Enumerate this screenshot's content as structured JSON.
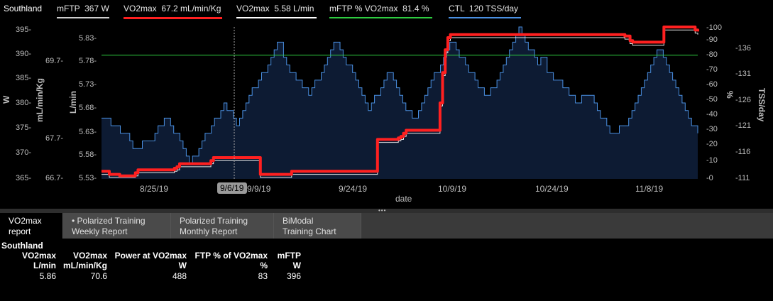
{
  "legend": {
    "items": [
      {
        "key": "southland",
        "label": "Southland",
        "color": "#ffffff"
      },
      {
        "key": "mftp",
        "label": "mFTP  367 W",
        "color": "#cfcfcf"
      },
      {
        "key": "vo2_kg",
        "label": "VO2max  67.2 mL/min/Kg",
        "color": "#ff2020"
      },
      {
        "key": "vo2_l",
        "label": "VO2max  5.58 L/min",
        "color": "#ffffff"
      },
      {
        "key": "pct",
        "label": "mFTP % VO2max  81.4 %",
        "color": "#2ecc40"
      },
      {
        "key": "ctl",
        "label": "CTL  120 TSS/day",
        "color": "#4a90e2"
      }
    ]
  },
  "chart_data": {
    "type": "line",
    "xlabel": "date",
    "x_ticks": [
      "8/25/19",
      "9/6/19",
      "9/9/19",
      "9/24/19",
      "10/9/19",
      "10/24/19",
      "11/8/19"
    ],
    "cursor_label": "9/6/19",
    "axes": {
      "w": {
        "label": "W",
        "ticks": [
          "395-",
          "390-",
          "385-",
          "380-",
          "375-",
          "370-",
          "365-"
        ]
      },
      "mlkg": {
        "label": "mL/min/Kg",
        "ticks": [
          "69.7-",
          "67.7-",
          "66.7-"
        ]
      },
      "lmin": {
        "label": "L/min",
        "ticks": [
          "5.83-",
          "5.78-",
          "5.73-",
          "5.68-",
          "5.63-",
          "5.58-",
          "5.53-"
        ]
      },
      "pct": {
        "label": "%",
        "ticks": [
          "-100",
          "-90",
          "-80",
          "-70",
          "-60",
          "-50",
          "-40",
          "-30",
          "-20",
          "-10",
          "-0"
        ]
      },
      "tss": {
        "label": "TSS/day",
        "ticks": [
          "-136",
          "-131",
          "-126",
          "-121",
          "-116",
          "-111"
        ]
      }
    },
    "ctl_area_pct": [
      40,
      40,
      40,
      35,
      35,
      35,
      30,
      30,
      30,
      25,
      20,
      20,
      20,
      25,
      25,
      25,
      25,
      30,
      35,
      35,
      40,
      40,
      35,
      30,
      30,
      25,
      20,
      15,
      10,
      15,
      15,
      20,
      25,
      30,
      30,
      35,
      40,
      40,
      45,
      50,
      45,
      45,
      40,
      35,
      40,
      45,
      50,
      55,
      60,
      60,
      65,
      70,
      70,
      75,
      80,
      85,
      90,
      90,
      80,
      75,
      70,
      70,
      65,
      65,
      60,
      60,
      55,
      60,
      65,
      65,
      70,
      75,
      80,
      85,
      90,
      90,
      85,
      80,
      75,
      75,
      70,
      65,
      60,
      55,
      50,
      45,
      50,
      55,
      55,
      60,
      65,
      70,
      70,
      65,
      60,
      55,
      50,
      45,
      45,
      40,
      40,
      45,
      50,
      55,
      60,
      65,
      70,
      70,
      75,
      80,
      85,
      90,
      90,
      85,
      80,
      80,
      75,
      70,
      70,
      65,
      60,
      60,
      55,
      55,
      60,
      60,
      65,
      70,
      75,
      80,
      85,
      90,
      95,
      100,
      95,
      90,
      85,
      85,
      80,
      75,
      80,
      80,
      70,
      70,
      65,
      65,
      65,
      60,
      60,
      55,
      55,
      50,
      50,
      55,
      55,
      55,
      55,
      50,
      45,
      40,
      40,
      35,
      30,
      30,
      30,
      35,
      35,
      35,
      40,
      45,
      50,
      55,
      60,
      65,
      70,
      75,
      80,
      85,
      85,
      80,
      75,
      70,
      65,
      60,
      55,
      50,
      45,
      40,
      35,
      35,
      30
    ],
    "vo2_pct": [
      5,
      5,
      5,
      3,
      3,
      3,
      3,
      2,
      2,
      2,
      2,
      2,
      2,
      4,
      6,
      6,
      6,
      6,
      6,
      6,
      6,
      6,
      6,
      6,
      6,
      6,
      6,
      6,
      7,
      8,
      10,
      10,
      10,
      10,
      10,
      10,
      10,
      10,
      10,
      10,
      10,
      10,
      12,
      14,
      14,
      14,
      14,
      14,
      14,
      14,
      14,
      14,
      14,
      14,
      14,
      14,
      14,
      14,
      14,
      14,
      14,
      3,
      3,
      3,
      3,
      3,
      3,
      3,
      3,
      3,
      3,
      3,
      3,
      5,
      5,
      5,
      5,
      5,
      5,
      5,
      5,
      5,
      5,
      5,
      5,
      5,
      5,
      5,
      5,
      5,
      5,
      5,
      5,
      5,
      5,
      5,
      5,
      5,
      5,
      5,
      5,
      5,
      5,
      5,
      5,
      5,
      26,
      26,
      26,
      26,
      26,
      26,
      26,
      26,
      27,
      28,
      30,
      32,
      32,
      32,
      32,
      32,
      32,
      32,
      32,
      32,
      32,
      32,
      32,
      32,
      50,
      70,
      85,
      93,
      95,
      95,
      95,
      95,
      95,
      95,
      95,
      95,
      95,
      95,
      95,
      95,
      95,
      95,
      95,
      95,
      95,
      95,
      95,
      95,
      95,
      95,
      95,
      95,
      95,
      95,
      95,
      95,
      95,
      95,
      95,
      95,
      95,
      95,
      95,
      95,
      95,
      95,
      95,
      95,
      95,
      95,
      95,
      95,
      95,
      95,
      95,
      95,
      95,
      95,
      95,
      95,
      95,
      95,
      95,
      95,
      95,
      95,
      95,
      95,
      95,
      95,
      95,
      95,
      95,
      95,
      95,
      94,
      94,
      91,
      90,
      90,
      90,
      90,
      90,
      90,
      90,
      90,
      90,
      90,
      90,
      90,
      100,
      100,
      100,
      100,
      100,
      100,
      100,
      100,
      100,
      100,
      100,
      100,
      98,
      97
    ],
    "vo2_l_pct": [
      3,
      3,
      3,
      1,
      1,
      1,
      1,
      1,
      1,
      1,
      1,
      1,
      1,
      2,
      4,
      4,
      4,
      4,
      4,
      4,
      4,
      4,
      4,
      4,
      4,
      4,
      4,
      4,
      5,
      6,
      8,
      8,
      8,
      8,
      8,
      8,
      8,
      8,
      8,
      8,
      8,
      8,
      10,
      12,
      12,
      12,
      12,
      12,
      12,
      12,
      12,
      12,
      12,
      12,
      12,
      12,
      12,
      12,
      12,
      12,
      12,
      1,
      1,
      1,
      1,
      1,
      1,
      1,
      1,
      1,
      1,
      1,
      1,
      3,
      3,
      3,
      3,
      3,
      3,
      3,
      3,
      3,
      3,
      3,
      3,
      3,
      3,
      3,
      3,
      3,
      3,
      3,
      3,
      3,
      3,
      3,
      3,
      3,
      3,
      3,
      3,
      3,
      3,
      3,
      3,
      3,
      24,
      24,
      24,
      24,
      24,
      24,
      24,
      24,
      25,
      26,
      28,
      30,
      30,
      30,
      30,
      30,
      30,
      30,
      30,
      30,
      30,
      30,
      30,
      30,
      48,
      68,
      83,
      91,
      93,
      93,
      93,
      93,
      93,
      93,
      93,
      93,
      93,
      93,
      93,
      93,
      93,
      93,
      93,
      93,
      93,
      93,
      93,
      93,
      93,
      93,
      93,
      93,
      93,
      93,
      93,
      93,
      93,
      93,
      93,
      93,
      93,
      93,
      93,
      93,
      93,
      93,
      93,
      93,
      93,
      93,
      93,
      93,
      93,
      93,
      93,
      93,
      93,
      93,
      93,
      93,
      93,
      93,
      93,
      93,
      93,
      93,
      93,
      93,
      93,
      93,
      93,
      93,
      93,
      93,
      93,
      92,
      92,
      89,
      88,
      88,
      88,
      88,
      88,
      88,
      88,
      88,
      88,
      88,
      88,
      88,
      98,
      98,
      98,
      98,
      98,
      98,
      98,
      98,
      98,
      98,
      98,
      98,
      96,
      95
    ],
    "mftp_pct_value": 81.4,
    "pct_range": [
      0,
      100
    ]
  },
  "tabs": [
    {
      "line1": "VO2max",
      "line2": "report"
    },
    {
      "line1": "• Polarized Training",
      "line2": "Weekly Report"
    },
    {
      "line1": "Polarized Training",
      "line2": "Monthly Report"
    },
    {
      "line1": "BiModal",
      "line2": "Training Chart"
    }
  ],
  "report": {
    "title": "Southland",
    "columns": [
      {
        "h1": "VO2max",
        "h2": "L/min",
        "value": "5.86"
      },
      {
        "h1": "VO2max",
        "h2": "mL/min/Kg",
        "value": "70.6"
      },
      {
        "h1": "Power at VO2max",
        "h2": "W",
        "value": "488"
      },
      {
        "h1": "FTP % of VO2max",
        "h2": "%",
        "value": "83"
      },
      {
        "h1": "mFTP",
        "h2": "W",
        "value": "396"
      }
    ]
  }
}
